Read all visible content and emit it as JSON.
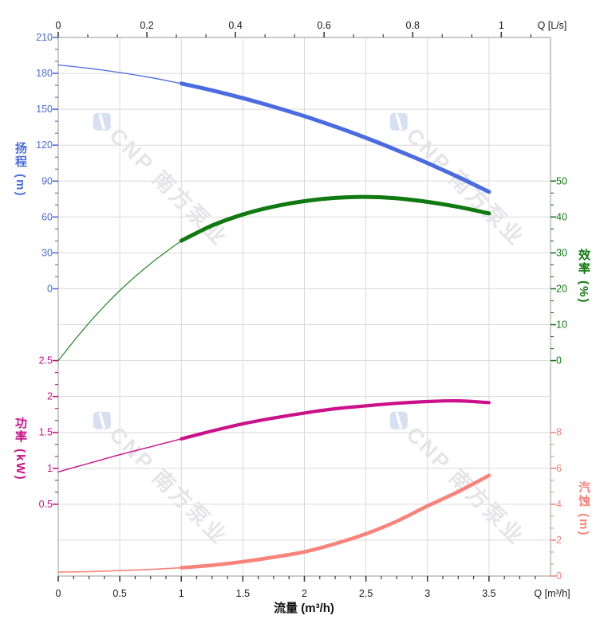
{
  "watermark": {
    "text": "CNP 南方泵业",
    "text_color": "#e5e5e9",
    "logo_color": "#d6e0f0"
  },
  "chart_data": {
    "type": "line",
    "title": "",
    "grid": true,
    "x_axis_bottom": {
      "title": "流量 (m³/h)",
      "unit_label": "Q [m³/h]",
      "tick_labels": [
        "0",
        "0.5",
        "1",
        "1.5",
        "2",
        "2.5",
        "3",
        "3.5"
      ],
      "range": [
        0,
        4.0
      ],
      "minor_divisions": 4,
      "tick_color": "#3c3c3c",
      "label_color": "#1a1a1a"
    },
    "x_axis_top": {
      "unit_label": "Q [L/s]",
      "tick_labels": [
        "0",
        "0.2",
        "0.4",
        "0.6",
        "0.8",
        "1"
      ],
      "range": [
        0,
        1.111
      ],
      "to_bottom_factor": 3.6,
      "minor_divisions": 3,
      "tick_color": "#3c3c3c",
      "label_color": "#1a1a1a"
    },
    "y_axes": {
      "head": {
        "label": "扬程 (m)",
        "color": "#4a6ce0",
        "side": "left",
        "tick_labels": [
          "210",
          "180",
          "150",
          "120",
          "90",
          "60",
          "30",
          "0"
        ],
        "first_value": 210,
        "value_per_row": 30,
        "row_start": 0
      },
      "efficiency": {
        "label": "效率 (%)",
        "color": "#107a10",
        "side": "right",
        "tick_labels": [
          "50",
          "40",
          "30",
          "20",
          "10",
          "0"
        ],
        "first_value": 50,
        "value_per_row": 10,
        "row_start": 4
      },
      "power": {
        "label": "功率 (kW)",
        "color": "#cb108a",
        "side": "left",
        "tick_labels": [
          "2.5",
          "2",
          "1.5",
          "1",
          "0.5"
        ],
        "first_value": 2.5,
        "value_per_row": 0.5,
        "row_start": 9
      },
      "npsh": {
        "label": "汽蚀 (m)",
        "color": "#f9837a",
        "side": "right",
        "tick_labels": [
          "8",
          "6",
          "4",
          "2",
          "0"
        ],
        "first_value": 8,
        "value_per_row": 2,
        "row_start": 11
      }
    },
    "x_values": [
      0,
      0.25,
      0.5,
      0.75,
      1,
      1.25,
      1.5,
      1.75,
      2,
      2.25,
      2.5,
      2.75,
      3,
      3.25,
      3.5
    ],
    "series": [
      {
        "name": "head",
        "axis": "head",
        "color": "#4a6ce0",
        "thin_width": 1.3,
        "thick_width": 5.0,
        "thick_from": 1,
        "y": [
          187,
          184.2,
          180.7,
          176.5,
          171.5,
          165.8,
          159.3,
          152.1,
          144.2,
          135.5,
          126.1,
          115.9,
          105.0,
          93.4,
          81.0
        ]
      },
      {
        "name": "efficiency",
        "axis": "efficiency",
        "color": "#107a10",
        "thin_width": 1.1,
        "thick_width": 5.0,
        "thick_from": 1,
        "y": [
          0,
          10.5,
          19.5,
          27.0,
          33.4,
          37.6,
          40.7,
          42.9,
          44.4,
          45.3,
          45.6,
          45.2,
          44.2,
          42.8,
          41.0
        ]
      },
      {
        "name": "power",
        "axis": "power",
        "color": "#cb108a",
        "thin_width": 1.4,
        "thick_width": 4.2,
        "thick_from": 1,
        "y": [
          0.95,
          1.07,
          1.19,
          1.3,
          1.41,
          1.52,
          1.62,
          1.7,
          1.77,
          1.83,
          1.87,
          1.905,
          1.93,
          1.94,
          1.915
        ]
      },
      {
        "name": "npsh",
        "axis": "npsh",
        "color": "#f9837a",
        "thin_width": 1.6,
        "thick_width": 4.6,
        "thick_from": 1,
        "y": [
          0.22,
          0.25,
          0.3,
          0.37,
          0.46,
          0.6,
          0.8,
          1.05,
          1.35,
          1.8,
          2.35,
          3.05,
          3.9,
          4.7,
          5.6
        ]
      }
    ],
    "style": {
      "grid_color": "#d9d9d9",
      "spine_color": "#ababab"
    }
  }
}
